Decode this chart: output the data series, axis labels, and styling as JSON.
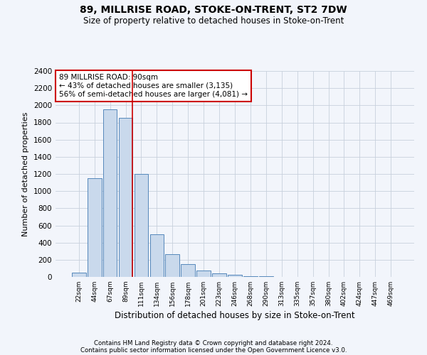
{
  "title1": "89, MILLRISE ROAD, STOKE-ON-TRENT, ST2 7DW",
  "title2": "Size of property relative to detached houses in Stoke-on-Trent",
  "xlabel": "Distribution of detached houses by size in Stoke-on-Trent",
  "ylabel": "Number of detached properties",
  "categories": [
    "22sqm",
    "44sqm",
    "67sqm",
    "89sqm",
    "111sqm",
    "134sqm",
    "156sqm",
    "178sqm",
    "201sqm",
    "223sqm",
    "246sqm",
    "268sqm",
    "290sqm",
    "313sqm",
    "335sqm",
    "357sqm",
    "380sqm",
    "402sqm",
    "424sqm",
    "447sqm",
    "469sqm"
  ],
  "values": [
    50,
    1150,
    1950,
    1850,
    1200,
    500,
    265,
    150,
    75,
    40,
    25,
    10,
    5,
    3,
    2,
    2,
    1,
    1,
    1,
    1,
    1
  ],
  "bar_color": "#c9d9ec",
  "bar_edge_color": "#5588bb",
  "vline_color": "#cc0000",
  "annotation_text": "89 MILLRISE ROAD: 90sqm\n← 43% of detached houses are smaller (3,135)\n56% of semi-detached houses are larger (4,081) →",
  "annotation_box_color": "white",
  "annotation_box_edge": "#cc0000",
  "ylim": [
    0,
    2400
  ],
  "yticks": [
    0,
    200,
    400,
    600,
    800,
    1000,
    1200,
    1400,
    1600,
    1800,
    2000,
    2200,
    2400
  ],
  "footer1": "Contains HM Land Registry data © Crown copyright and database right 2024.",
  "footer2": "Contains public sector information licensed under the Open Government Licence v3.0.",
  "bg_color": "#f2f5fb",
  "plot_bg": "#f2f5fb",
  "grid_color": "#c8d0dc"
}
